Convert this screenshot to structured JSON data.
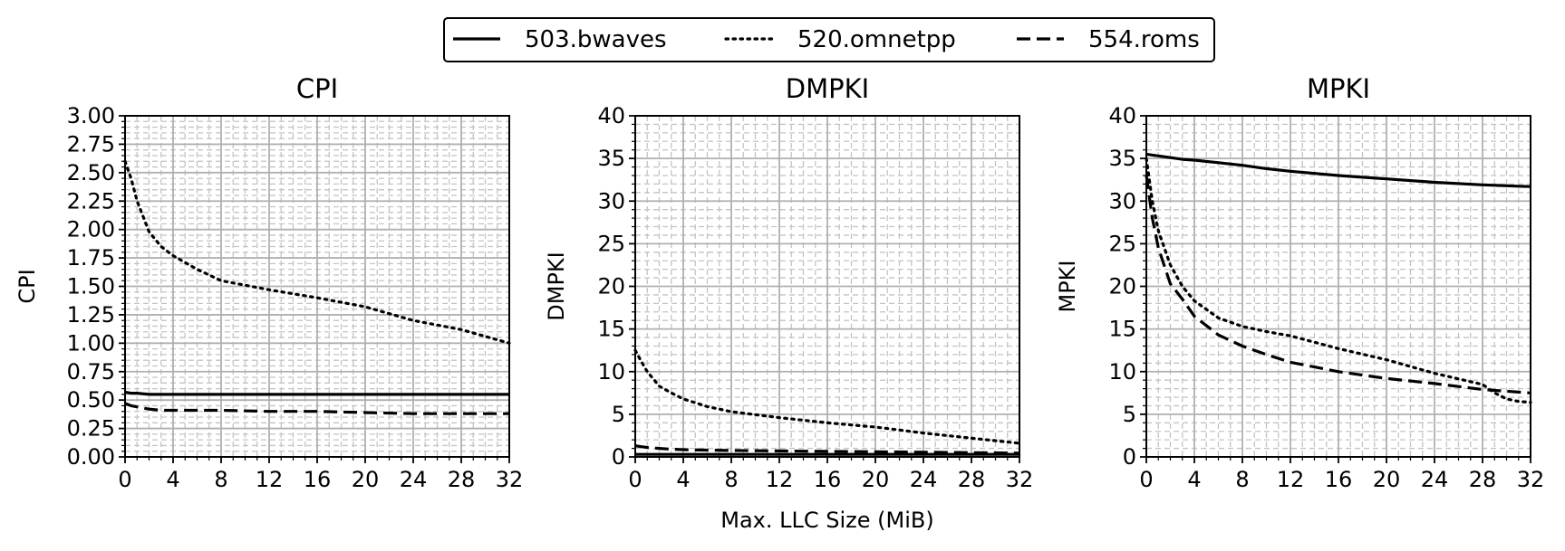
{
  "legend": {
    "placement": "top-center",
    "items": [
      {
        "name": "503.bwaves",
        "style": "solid"
      },
      {
        "name": "520.omnetpp",
        "style": "dotted"
      },
      {
        "name": "554.roms",
        "style": "dashed"
      }
    ]
  },
  "shared_xlabel": "Max. LLC Size (MiB)",
  "chart_data": [
    {
      "type": "line",
      "title": "CPI",
      "xlabel": "",
      "ylabel": "CPI",
      "xlim": [
        0,
        32
      ],
      "ylim": [
        0,
        3
      ],
      "xticks": [
        0,
        4,
        8,
        12,
        16,
        20,
        24,
        28,
        32
      ],
      "yticks": [
        0,
        0.25,
        0.5,
        0.75,
        1.0,
        1.25,
        1.5,
        1.75,
        2.0,
        2.25,
        2.5,
        2.75,
        3.0
      ],
      "ytick_labels": [
        "0.00",
        "0.25",
        "0.50",
        "0.75",
        "1.00",
        "1.25",
        "1.50",
        "1.75",
        "2.00",
        "2.25",
        "2.50",
        "2.75",
        "3.00"
      ],
      "grid": "major solid, minor dashed",
      "x": [
        0,
        0.5,
        1,
        2,
        3,
        4,
        6,
        8,
        12,
        16,
        20,
        24,
        28,
        32
      ],
      "series": [
        {
          "name": "503.bwaves",
          "style": "solid",
          "values": [
            0.57,
            0.56,
            0.56,
            0.55,
            0.55,
            0.55,
            0.55,
            0.55,
            0.55,
            0.55,
            0.55,
            0.55,
            0.55,
            0.55
          ]
        },
        {
          "name": "520.omnetpp",
          "style": "dotted",
          "values": [
            2.6,
            2.45,
            2.25,
            1.98,
            1.85,
            1.77,
            1.65,
            1.55,
            1.47,
            1.4,
            1.32,
            1.2,
            1.12,
            1.0
          ]
        },
        {
          "name": "554.roms",
          "style": "dashed",
          "values": [
            0.47,
            0.45,
            0.44,
            0.42,
            0.41,
            0.41,
            0.41,
            0.41,
            0.4,
            0.4,
            0.39,
            0.38,
            0.38,
            0.38
          ]
        }
      ]
    },
    {
      "type": "line",
      "title": "DMPKI",
      "xlabel": "Max. LLC Size (MiB)",
      "ylabel": "DMPKI",
      "xlim": [
        0,
        32
      ],
      "ylim": [
        0,
        40
      ],
      "xticks": [
        0,
        4,
        8,
        12,
        16,
        20,
        24,
        28,
        32
      ],
      "yticks": [
        0,
        5,
        10,
        15,
        20,
        25,
        30,
        35,
        40
      ],
      "ytick_labels": [
        "0",
        "5",
        "10",
        "15",
        "20",
        "25",
        "30",
        "35",
        "40"
      ],
      "grid": "major solid, minor dashed",
      "x": [
        0,
        0.5,
        1,
        2,
        3,
        4,
        6,
        8,
        12,
        16,
        20,
        24,
        28,
        32
      ],
      "series": [
        {
          "name": "503.bwaves",
          "style": "solid",
          "values": [
            0.3,
            0.3,
            0.3,
            0.3,
            0.3,
            0.3,
            0.3,
            0.3,
            0.3,
            0.3,
            0.3,
            0.3,
            0.3,
            0.3
          ]
        },
        {
          "name": "520.omnetpp",
          "style": "dotted",
          "values": [
            12.5,
            11.2,
            10.0,
            8.3,
            7.5,
            6.8,
            5.9,
            5.3,
            4.6,
            4.0,
            3.5,
            2.8,
            2.2,
            1.6
          ]
        },
        {
          "name": "554.roms",
          "style": "dashed",
          "values": [
            1.3,
            1.2,
            1.1,
            1.0,
            0.9,
            0.85,
            0.8,
            0.75,
            0.7,
            0.65,
            0.6,
            0.55,
            0.5,
            0.45
          ]
        }
      ]
    },
    {
      "type": "line",
      "title": "MPKI",
      "xlabel": "",
      "ylabel": "MPKI",
      "xlim": [
        0,
        32
      ],
      "ylim": [
        0,
        40
      ],
      "xticks": [
        0,
        4,
        8,
        12,
        16,
        20,
        24,
        28,
        32
      ],
      "yticks": [
        0,
        5,
        10,
        15,
        20,
        25,
        30,
        35,
        40
      ],
      "ytick_labels": [
        "0",
        "5",
        "10",
        "15",
        "20",
        "25",
        "30",
        "35",
        "40"
      ],
      "grid": "major solid, minor dashed",
      "x": [
        0,
        0.5,
        1,
        2,
        3,
        4,
        6,
        8,
        10,
        12,
        16,
        20,
        24,
        28,
        29,
        30,
        31,
        32
      ],
      "series": [
        {
          "name": "503.bwaves",
          "style": "solid",
          "values": [
            35.5,
            35.4,
            35.3,
            35.1,
            34.9,
            34.8,
            34.5,
            34.2,
            33.8,
            33.5,
            33.0,
            32.6,
            32.2,
            31.9,
            31.85,
            31.8,
            31.75,
            31.7
          ]
        },
        {
          "name": "520.omnetpp",
          "style": "dotted",
          "values": [
            35.0,
            30.0,
            26.5,
            22.5,
            20.0,
            18.3,
            16.3,
            15.3,
            14.7,
            14.2,
            12.7,
            11.4,
            9.8,
            8.5,
            7.5,
            6.8,
            6.5,
            6.4
          ]
        },
        {
          "name": "554.roms",
          "style": "dashed",
          "values": [
            33.0,
            28.0,
            24.5,
            20.3,
            18.5,
            16.5,
            14.3,
            13.0,
            12.0,
            11.1,
            10.0,
            9.2,
            8.6,
            7.9,
            7.8,
            7.7,
            7.6,
            7.5
          ]
        }
      ]
    }
  ]
}
